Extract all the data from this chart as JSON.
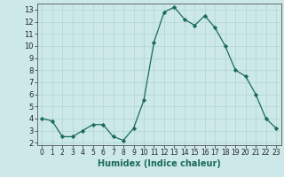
{
  "x": [
    0,
    1,
    2,
    3,
    4,
    5,
    6,
    7,
    8,
    9,
    10,
    11,
    12,
    13,
    14,
    15,
    16,
    17,
    18,
    19,
    20,
    21,
    22,
    23
  ],
  "y": [
    4.0,
    3.8,
    2.5,
    2.5,
    3.0,
    3.5,
    3.5,
    2.5,
    2.2,
    3.2,
    5.5,
    10.3,
    12.8,
    13.2,
    12.2,
    11.7,
    12.5,
    11.5,
    10.0,
    8.0,
    7.5,
    6.0,
    4.0,
    3.2
  ],
  "line_color": "#1a6b5a",
  "marker_color": "#1a6b5a",
  "bg_color": "#cce8e8",
  "grid_color": "#b0d4d4",
  "xlabel": "Humidex (Indice chaleur)",
  "xlim": [
    -0.5,
    23.5
  ],
  "ylim": [
    1.8,
    13.5
  ],
  "yticks": [
    2,
    3,
    4,
    5,
    6,
    7,
    8,
    9,
    10,
    11,
    12,
    13
  ],
  "xticks": [
    0,
    1,
    2,
    3,
    4,
    5,
    6,
    7,
    8,
    9,
    10,
    11,
    12,
    13,
    14,
    15,
    16,
    17,
    18,
    19,
    20,
    21,
    22,
    23
  ]
}
